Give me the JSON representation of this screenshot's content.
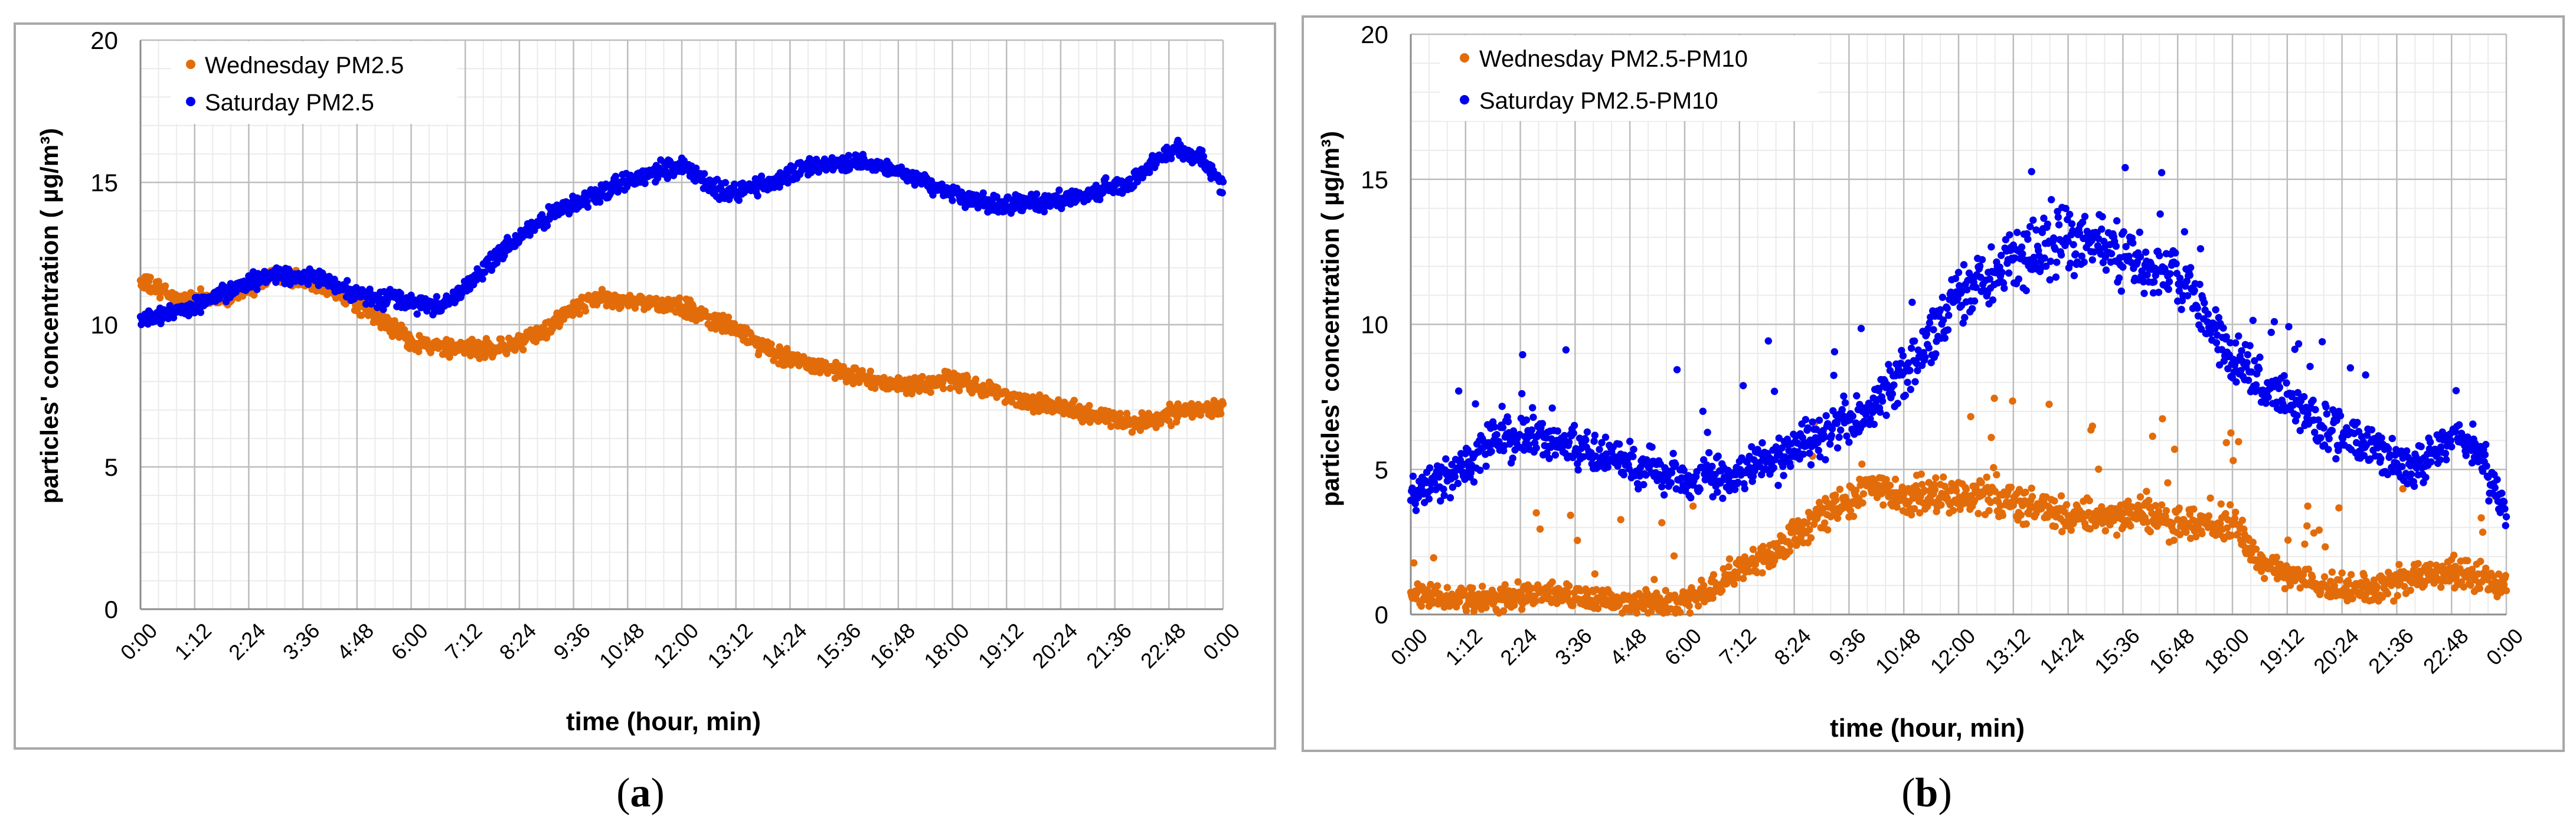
{
  "chart_data": [
    {
      "type": "scatter",
      "panel_label": "a",
      "caption_open": "(",
      "caption_close": ")",
      "title": "",
      "xlabel": "time (hour, min)",
      "ylabel": "particles' concentration ( µg/m³)",
      "xlim": [
        0,
        1440
      ],
      "ylim": [
        0,
        20
      ],
      "grid": true,
      "legend_position": "top-left",
      "yticks": [
        0,
        5,
        10,
        15,
        20
      ],
      "ytick_labels": [
        "0",
        "5",
        "10",
        "15",
        "20"
      ],
      "xticks": [
        0,
        72,
        144,
        216,
        288,
        360,
        432,
        504,
        576,
        648,
        720,
        792,
        864,
        936,
        1008,
        1080,
        1152,
        1224,
        1296,
        1368,
        1440
      ],
      "xtick_labels": [
        "0:00",
        "1:12",
        "2:24",
        "3:36",
        "4:48",
        "6:00",
        "7:12",
        "8:24",
        "9:36",
        "10:48",
        "12:00",
        "13:12",
        "14:24",
        "15:36",
        "16:48",
        "18:00",
        "19:12",
        "20:24",
        "21:36",
        "22:48",
        "0:00"
      ],
      "series": [
        {
          "name": "Wednesday PM2.5",
          "color": "#E36C0A",
          "noise": 0.45,
          "x": [
            0,
            60,
            120,
            180,
            240,
            300,
            330,
            360,
            420,
            480,
            530,
            560,
            600,
            660,
            720,
            780,
            840,
            900,
            960,
            1020,
            1080,
            1140,
            1200,
            1260,
            1320,
            1380,
            1440
          ],
          "y": [
            11.5,
            10.8,
            11.0,
            11.8,
            11.5,
            10.5,
            10.0,
            9.4,
            9.1,
            9.2,
            9.6,
            10.3,
            10.9,
            10.8,
            10.6,
            10.0,
            9.0,
            8.6,
            8.1,
            7.8,
            8.1,
            7.6,
            7.2,
            6.9,
            6.5,
            6.9,
            7.1
          ]
        },
        {
          "name": "Saturday PM2.5",
          "color": "#0000EE",
          "noise": 0.45,
          "x": [
            0,
            60,
            120,
            180,
            240,
            300,
            360,
            400,
            440,
            480,
            540,
            600,
            660,
            720,
            780,
            840,
            900,
            960,
            1020,
            1080,
            1140,
            1200,
            1260,
            1320,
            1350,
            1380,
            1410,
            1440
          ],
          "y": [
            10.2,
            10.5,
            11.2,
            11.8,
            11.6,
            11.0,
            10.8,
            10.6,
            11.5,
            12.5,
            13.8,
            14.5,
            15.2,
            15.6,
            14.6,
            15.0,
            15.6,
            15.7,
            15.3,
            14.6,
            14.2,
            14.3,
            14.6,
            15.0,
            15.8,
            16.2,
            15.8,
            14.9
          ]
        }
      ]
    },
    {
      "type": "scatter",
      "panel_label": "b",
      "caption_open": "(",
      "caption_close": ")",
      "title": "",
      "xlabel": "time (hour, min)",
      "ylabel": "particles' concentration ( µg/m³)",
      "xlim": [
        0,
        1440
      ],
      "ylim": [
        0,
        20
      ],
      "grid": true,
      "legend_position": "top-left",
      "yticks": [
        0,
        5,
        10,
        15,
        20
      ],
      "ytick_labels": [
        "0",
        "5",
        "10",
        "15",
        "20"
      ],
      "xticks": [
        0,
        72,
        144,
        216,
        288,
        360,
        432,
        504,
        576,
        648,
        720,
        792,
        864,
        936,
        1008,
        1080,
        1152,
        1224,
        1296,
        1368,
        1440
      ],
      "xtick_labels": [
        "0:00",
        "1:12",
        "2:24",
        "3:36",
        "4:48",
        "6:00",
        "7:12",
        "8:24",
        "9:36",
        "10:48",
        "12:00",
        "13:12",
        "14:24",
        "15:36",
        "16:48",
        "18:00",
        "19:12",
        "20:24",
        "21:36",
        "22:48",
        "0:00"
      ],
      "series": [
        {
          "name": "Wednesday PM2.5-PM10",
          "color": "#E36C0A",
          "noise": 1.0,
          "x": [
            0,
            60,
            120,
            180,
            240,
            300,
            360,
            400,
            440,
            480,
            540,
            600,
            660,
            720,
            780,
            840,
            900,
            960,
            1020,
            1080,
            1110,
            1140,
            1200,
            1260,
            1320,
            1380,
            1440
          ],
          "y": [
            0.6,
            0.5,
            0.5,
            0.8,
            0.5,
            0.4,
            0.4,
            1.0,
            1.6,
            2.2,
            3.5,
            4.5,
            4.0,
            4.2,
            4.0,
            3.6,
            3.3,
            3.5,
            3.0,
            3.2,
            2.0,
            1.5,
            0.9,
            0.9,
            1.3,
            1.4,
            1.0
          ]
        },
        {
          "name": "Saturday PM2.5-PM10",
          "color": "#0000EE",
          "noise": 1.0,
          "x": [
            0,
            60,
            120,
            180,
            240,
            300,
            360,
            420,
            480,
            540,
            600,
            660,
            720,
            780,
            840,
            900,
            960,
            1020,
            1080,
            1140,
            1200,
            1260,
            1320,
            1360,
            1400,
            1440
          ],
          "y": [
            4.0,
            5.0,
            6.2,
            6.1,
            5.5,
            5.0,
            4.7,
            4.8,
            5.3,
            6.2,
            7.0,
            8.5,
            11.0,
            12.0,
            12.8,
            12.8,
            12.3,
            11.4,
            8.8,
            7.5,
            6.5,
            5.8,
            5.0,
            6.0,
            5.8,
            3.5
          ]
        }
      ]
    }
  ]
}
